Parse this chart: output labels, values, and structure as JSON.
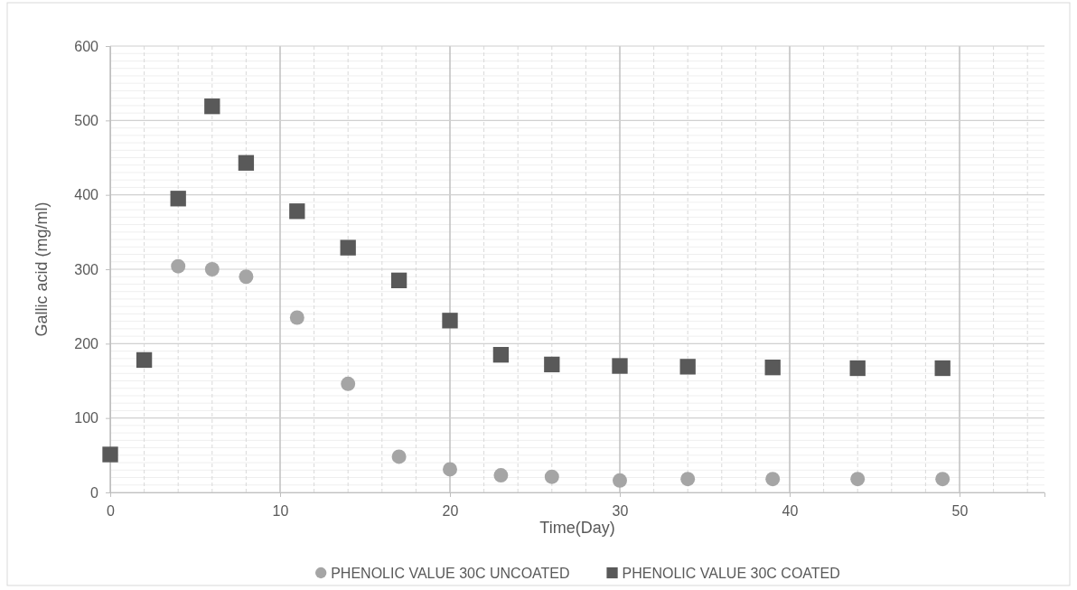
{
  "chart_data": {
    "type": "scatter",
    "xlabel": "Time(Day)",
    "ylabel": "Gallic acid (mg/ml)",
    "xlim": [
      0,
      55
    ],
    "xticks": [
      0,
      10,
      20,
      30,
      40,
      50
    ],
    "ylim": [
      0,
      600
    ],
    "yticks": [
      0,
      100,
      200,
      300,
      400,
      500,
      600
    ],
    "grid": true,
    "legend": "bottom",
    "series": [
      {
        "name": "PHENOLIC VALUE 30C UNCOATED",
        "color": "#a5a5a5",
        "marker": "circle",
        "x": [
          4,
          6,
          8,
          11,
          14,
          17,
          20,
          23,
          26,
          30,
          34,
          39,
          44,
          49
        ],
        "values": [
          304,
          300,
          290,
          235,
          146,
          48,
          31,
          23,
          21,
          16,
          18,
          18,
          18,
          18
        ]
      },
      {
        "name": "PHENOLIC VALUE 30C COATED",
        "color": "#595959",
        "marker": "square",
        "x": [
          0,
          2,
          4,
          6,
          8,
          11,
          14,
          17,
          20,
          23,
          26,
          30,
          34,
          39,
          44,
          49
        ],
        "values": [
          51,
          178,
          395,
          519,
          443,
          378,
          329,
          285,
          231,
          185,
          172,
          170,
          169,
          168,
          167,
          167
        ]
      }
    ]
  }
}
